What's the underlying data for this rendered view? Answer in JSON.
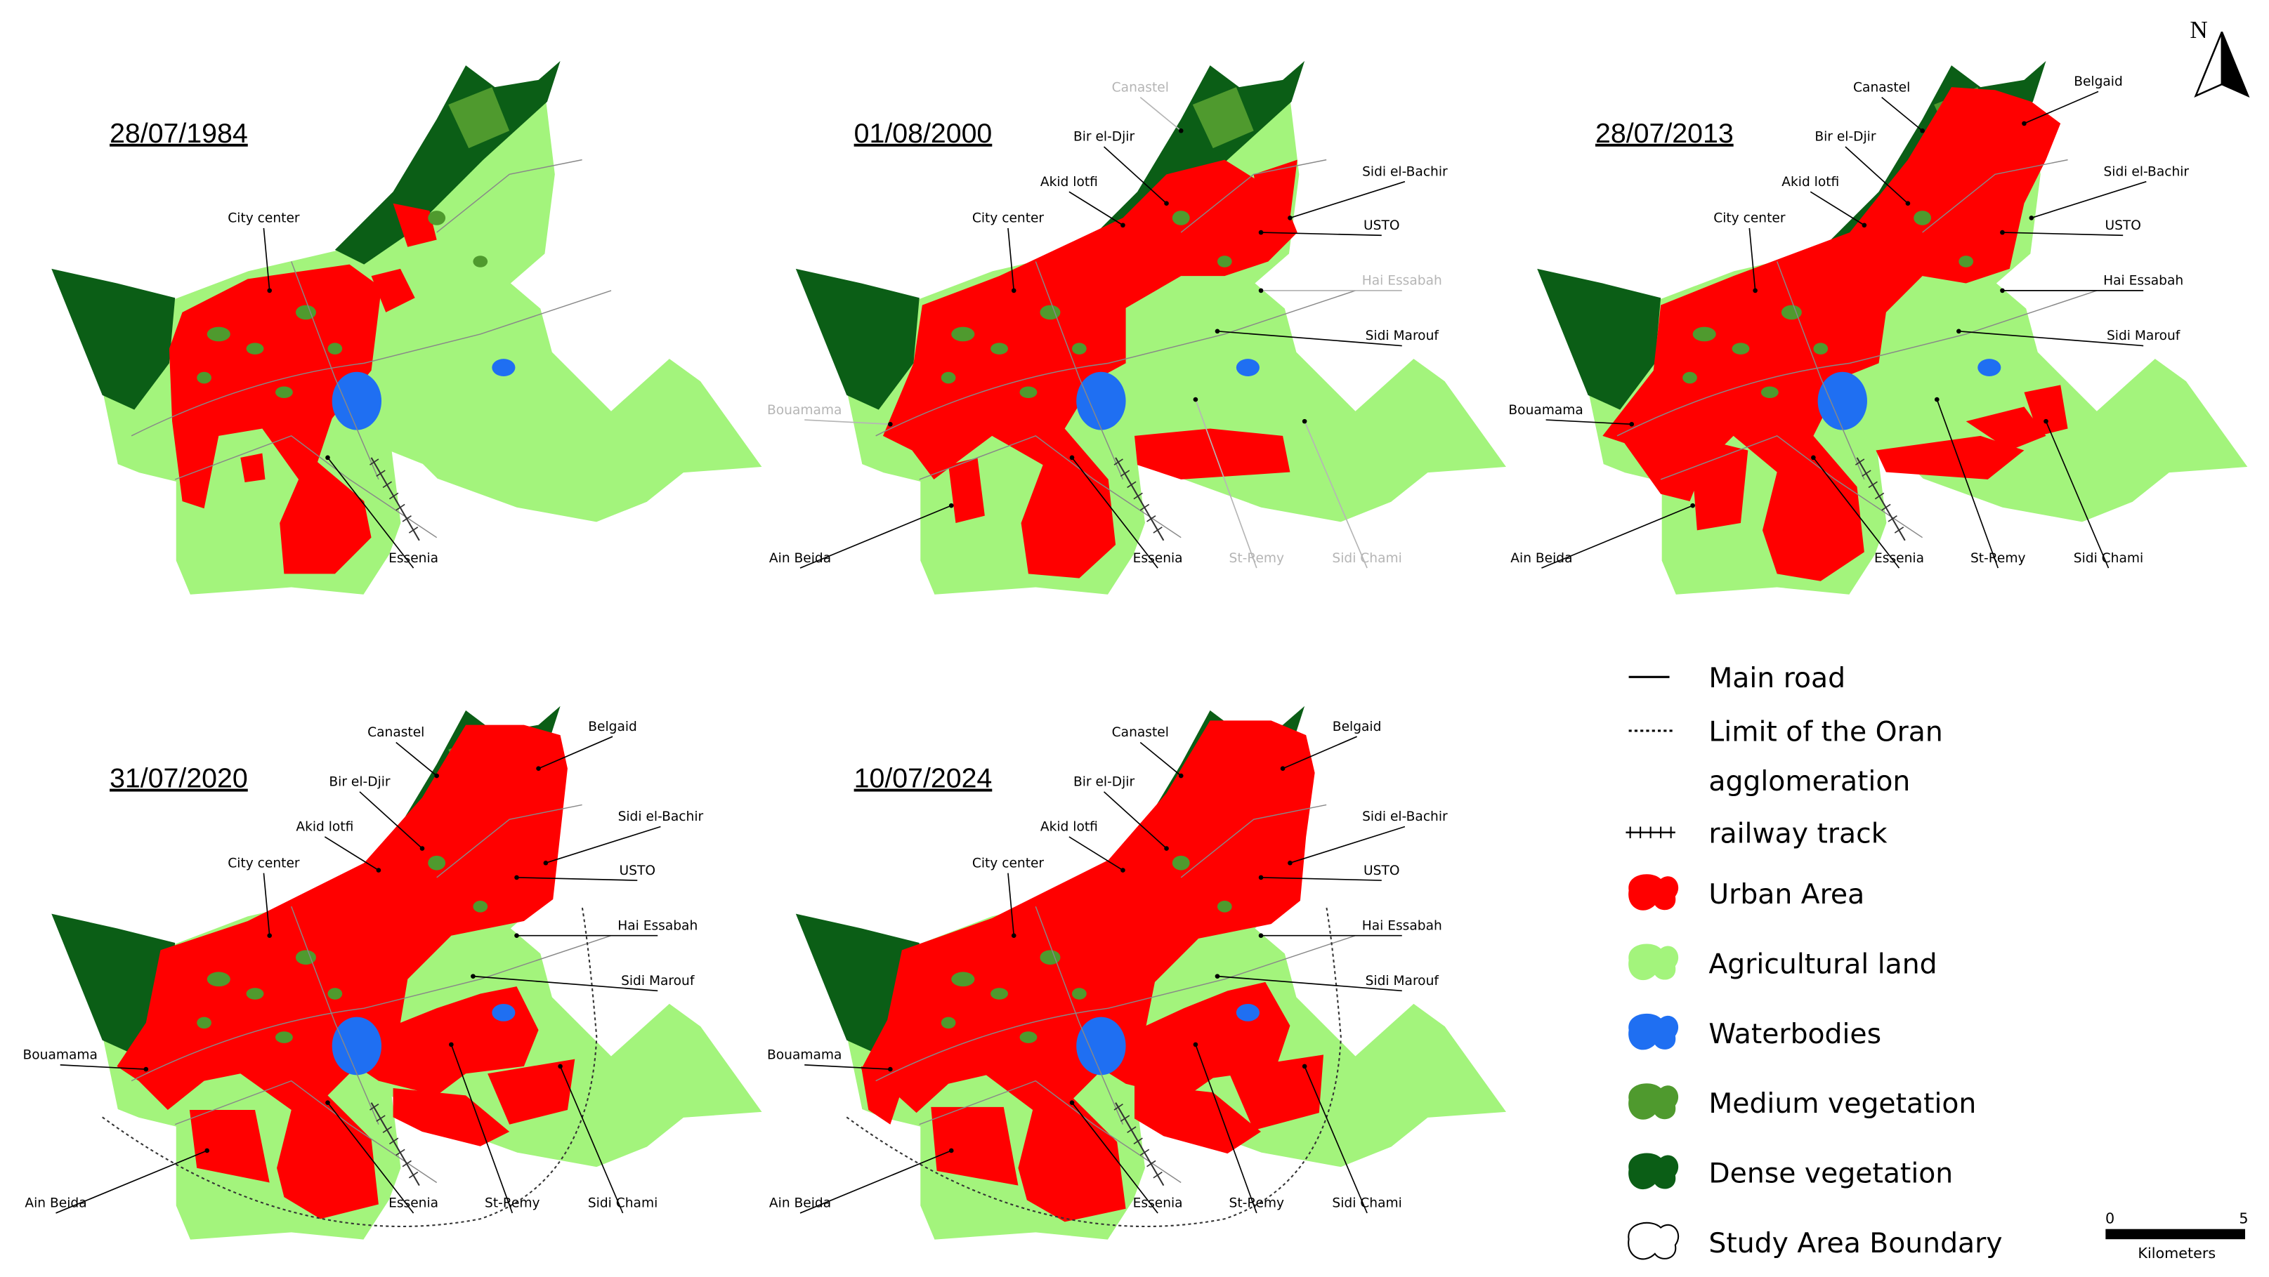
{
  "maps": [
    {
      "date": "28/07/1984",
      "labels": [
        {
          "name": "City center"
        },
        {
          "name": "Essenia"
        }
      ]
    },
    {
      "date": "01/08/2000",
      "labels": [
        {
          "name": "Canastel",
          "color": "#b5b5b5"
        },
        {
          "name": "Bir el-Djir"
        },
        {
          "name": "Akid lotfi"
        },
        {
          "name": "Sidi el-Bachir"
        },
        {
          "name": "USTO"
        },
        {
          "name": "Hai Essabah",
          "color": "#b5b5b5"
        },
        {
          "name": "Sidi Marouf"
        },
        {
          "name": "City center"
        },
        {
          "name": "Bouamama",
          "color": "#b5b5b5"
        },
        {
          "name": "Ain Beida"
        },
        {
          "name": "Essenia"
        },
        {
          "name": "St-Remy",
          "color": "#b5b5b5"
        },
        {
          "name": "Sidi Chami",
          "color": "#b5b5b5"
        }
      ]
    },
    {
      "date": "28/07/2013",
      "labels": [
        {
          "name": "Canastel"
        },
        {
          "name": "Belgaid"
        },
        {
          "name": "Bir el-Djir"
        },
        {
          "name": "Akid lotfi"
        },
        {
          "name": "Sidi el-Bachir"
        },
        {
          "name": "USTO"
        },
        {
          "name": "Hai Essabah"
        },
        {
          "name": "Sidi Marouf"
        },
        {
          "name": "City center"
        },
        {
          "name": "Bouamama"
        },
        {
          "name": "Ain Beida"
        },
        {
          "name": "Essenia"
        },
        {
          "name": "St-Remy"
        },
        {
          "name": "Sidi Chami"
        }
      ]
    },
    {
      "date": "31/07/2020",
      "labels": [
        {
          "name": "Canastel"
        },
        {
          "name": "Belgaid"
        },
        {
          "name": "Bir el-Djir"
        },
        {
          "name": "Akid lotfi"
        },
        {
          "name": "Sidi el-Bachir"
        },
        {
          "name": "USTO"
        },
        {
          "name": "Hai Essabah"
        },
        {
          "name": "Sidi Marouf"
        },
        {
          "name": "City center"
        },
        {
          "name": "Bouamama"
        },
        {
          "name": "Ain Beida"
        },
        {
          "name": "Essenia"
        },
        {
          "name": "St-Remy"
        },
        {
          "name": "Sidi Chami"
        }
      ]
    },
    {
      "date": "10/07/2024",
      "labels": [
        {
          "name": "Canastel"
        },
        {
          "name": "Belgaid"
        },
        {
          "name": "Bir el-Djir"
        },
        {
          "name": "Akid lotfi"
        },
        {
          "name": "Sidi el-Bachir"
        },
        {
          "name": "USTO"
        },
        {
          "name": "Hai Essabah"
        },
        {
          "name": "Sidi Marouf"
        },
        {
          "name": "City center"
        },
        {
          "name": "Bouamama"
        },
        {
          "name": "Ain Beida"
        },
        {
          "name": "Essenia"
        },
        {
          "name": "St-Remy"
        },
        {
          "name": "Sidi Chami"
        }
      ]
    }
  ],
  "legend": [
    {
      "lines": [
        "Main road"
      ]
    },
    {
      "lines": [
        "Limit of the Oran",
        "agglomeration"
      ]
    },
    {
      "lines": [
        "railway track"
      ]
    },
    {
      "lines": [
        "Urban Area"
      ],
      "color": "#ff0000"
    },
    {
      "lines": [
        "Agricultural land"
      ],
      "color": "#a3f47c"
    },
    {
      "lines": [
        "Waterbodies"
      ],
      "color": "#1f6ff2"
    },
    {
      "lines": [
        "Medium vegetation"
      ],
      "color": "#4f9a2e"
    },
    {
      "lines": [
        "Dense vegetation"
      ],
      "color": "#0b5e16"
    },
    {
      "lines": [
        "Study Area Boundary"
      ],
      "color": "#ffffff"
    }
  ],
  "north": "N",
  "scale_bar": {
    "start": 0,
    "end": 5,
    "unit": "Kilometers"
  }
}
